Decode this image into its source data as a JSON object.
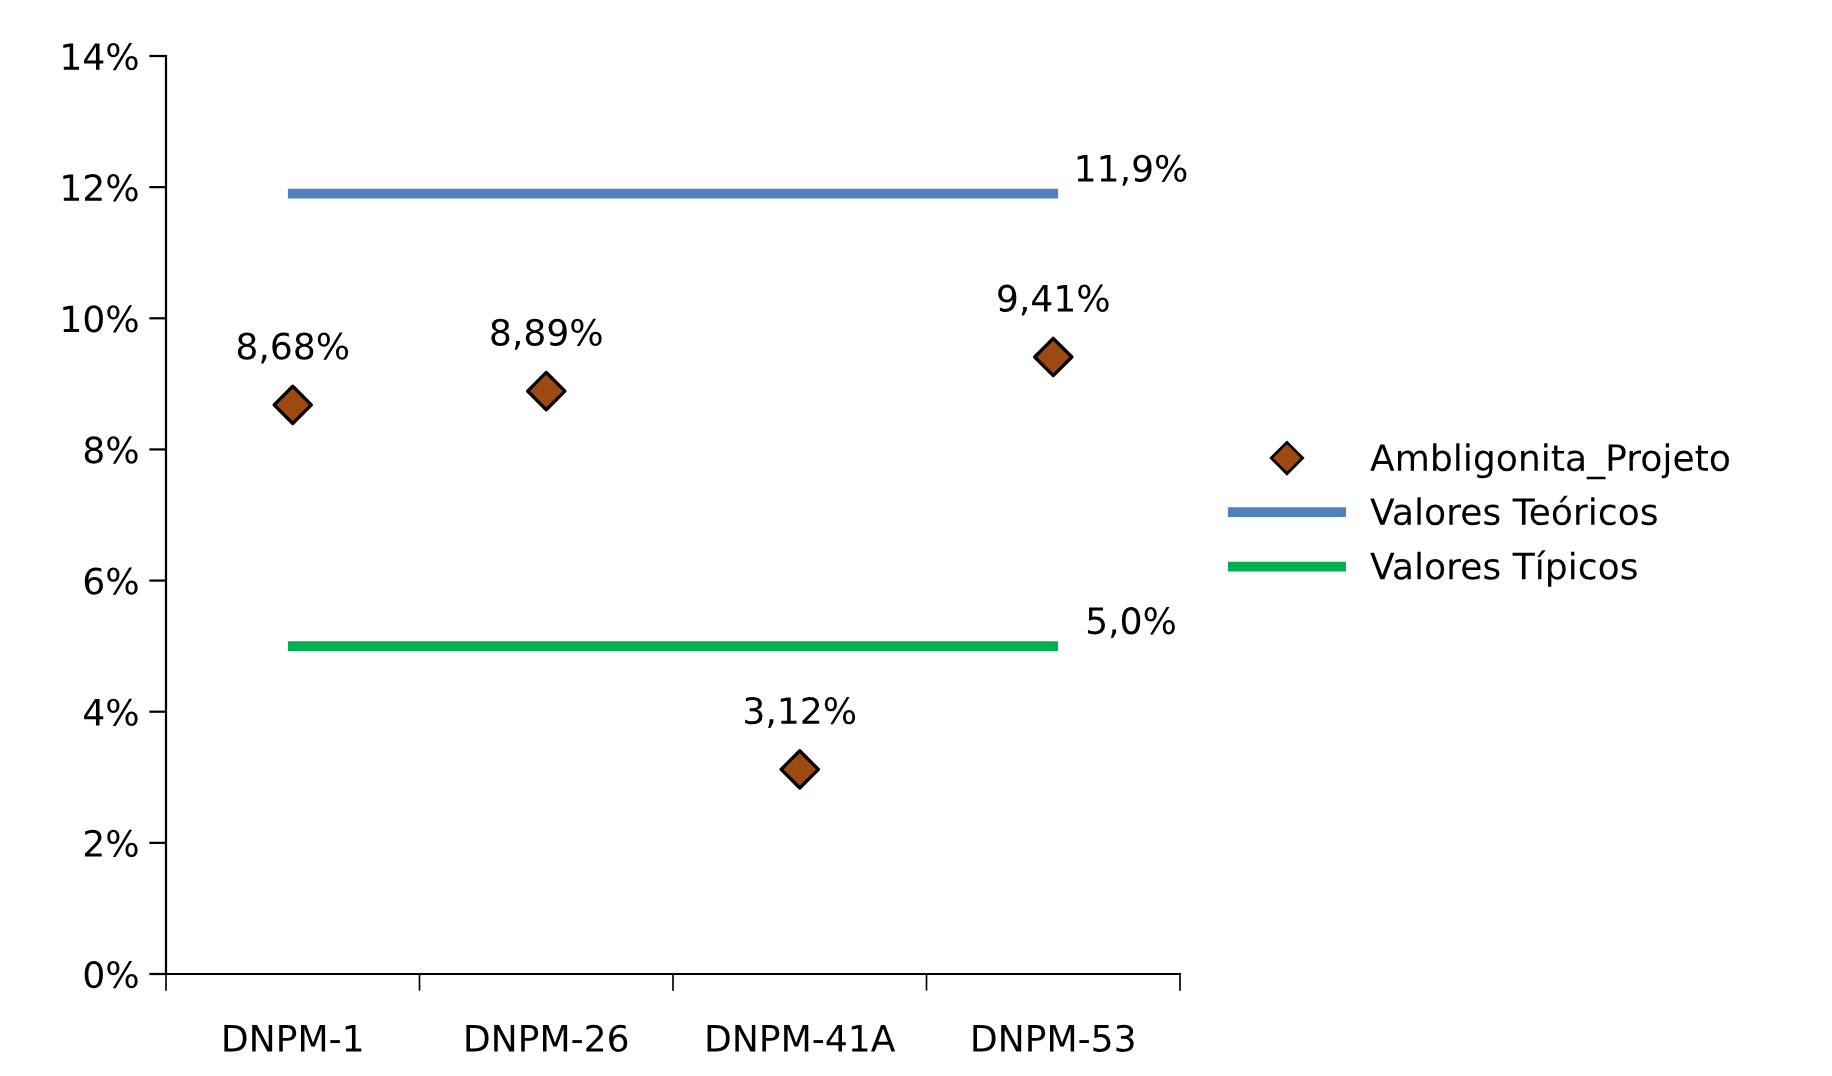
{
  "chart_data": {
    "type": "scatter",
    "categories": [
      "DNPM-1",
      "DNPM-26",
      "DNPM-41A",
      "DNPM-53"
    ],
    "series": [
      {
        "name": "Ambligonita_Projeto",
        "color": "#9c4a12",
        "marker": "diamond",
        "values": [
          8.68,
          8.89,
          3.12,
          9.41
        ],
        "value_labels": [
          "8,68%",
          "8,89%",
          "3,12%",
          "9,41%"
        ]
      },
      {
        "name": "Valores Teóricos",
        "type": "line",
        "color": "#4f81bd",
        "marker": "none",
        "line_style": "solid",
        "values": [
          11.9,
          11.9,
          11.9,
          11.9
        ],
        "value_labels": [
          null,
          null,
          null,
          "11,9%"
        ]
      },
      {
        "name": "Valores Típicos",
        "type": "line",
        "color": "#00b050",
        "marker": "none",
        "line_style": "solid",
        "values": [
          5.0,
          5.0,
          5.0,
          5.0
        ],
        "value_labels": [
          null,
          null,
          null,
          "5,0%"
        ]
      }
    ],
    "ylim": [
      0,
      14
    ],
    "yticks": [
      {
        "value": 0,
        "label": "0%"
      },
      {
        "value": 2,
        "label": "2%"
      },
      {
        "value": 4,
        "label": "4%"
      },
      {
        "value": 6,
        "label": "6%"
      },
      {
        "value": 8,
        "label": "8%"
      },
      {
        "value": 10,
        "label": "10%"
      },
      {
        "value": 12,
        "label": "12%"
      },
      {
        "value": 14,
        "label": "14%"
      }
    ],
    "grid": false,
    "legend": "right"
  }
}
